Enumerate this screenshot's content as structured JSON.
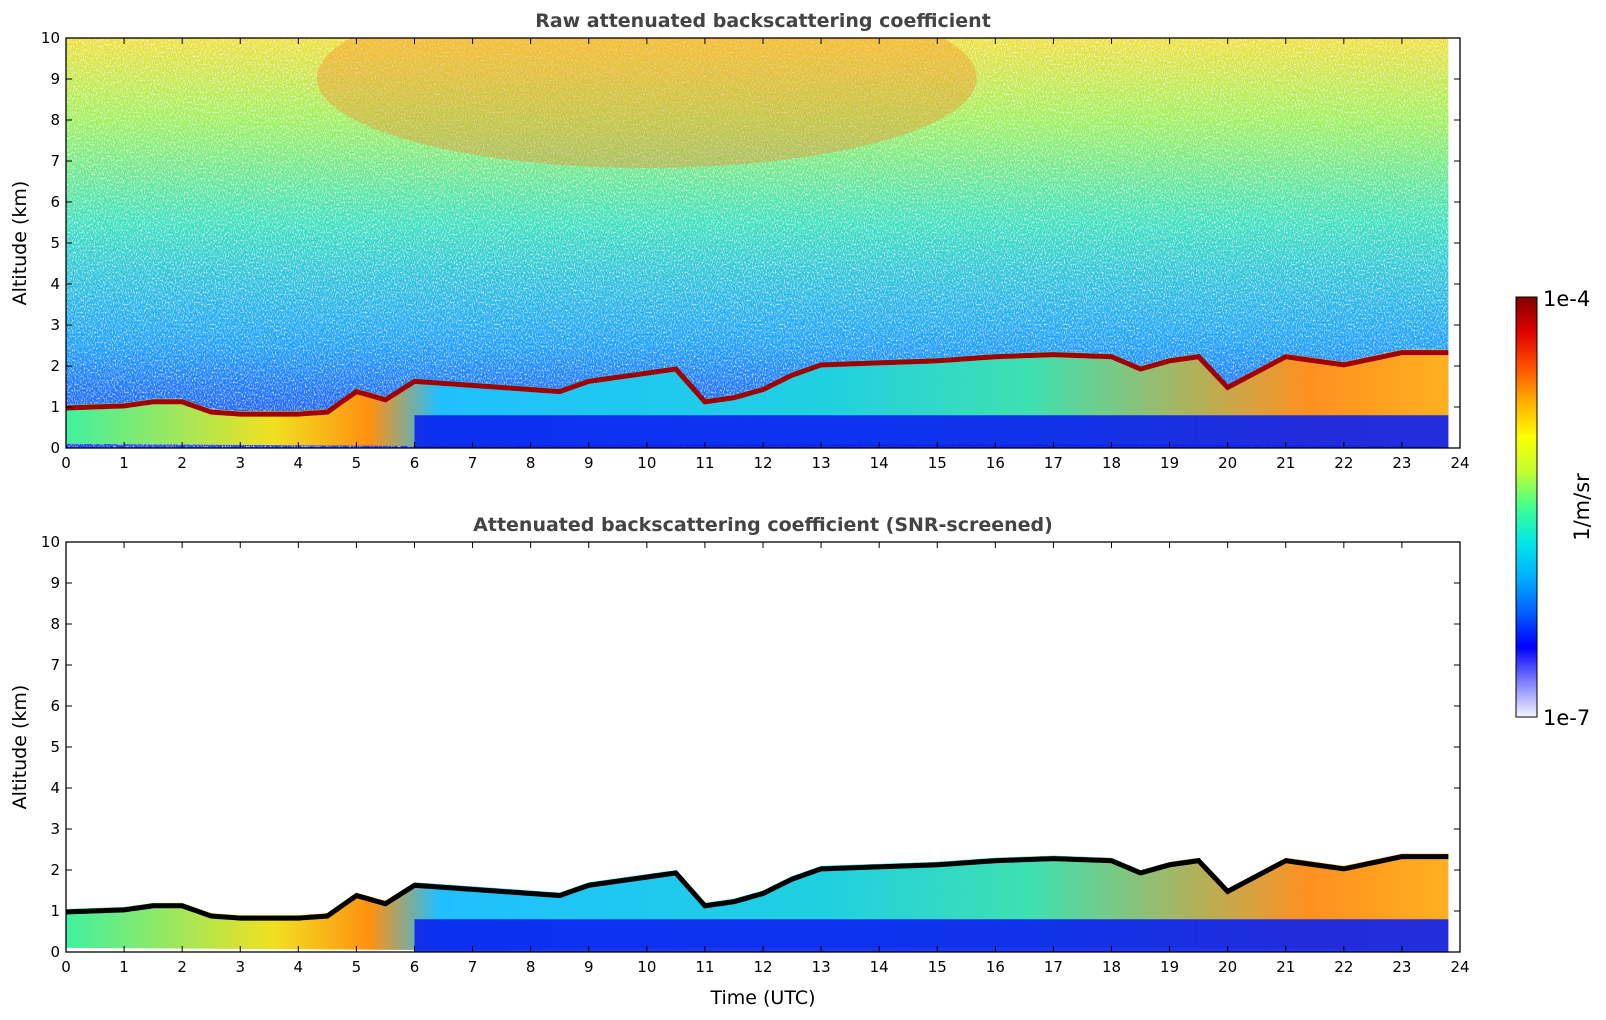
{
  "chart_data": [
    {
      "type": "heatmap",
      "title": "Raw attenuated backscattering coefficient",
      "xlabel": "",
      "ylabel": "Altitude (km)",
      "xlim": [
        0,
        24
      ],
      "ylim": [
        0,
        10
      ],
      "xticks": [
        "0",
        "1",
        "2",
        "3",
        "4",
        "5",
        "6",
        "7",
        "8",
        "9",
        "10",
        "11",
        "12",
        "13",
        "14",
        "15",
        "16",
        "17",
        "18",
        "19",
        "20",
        "21",
        "22",
        "23",
        "24"
      ],
      "yticks": [
        "0",
        "1",
        "2",
        "3",
        "4",
        "5",
        "6",
        "7",
        "8",
        "9",
        "10"
      ],
      "data_end_time": 23.8,
      "screened": false,
      "boundary_layer_top_km": [
        [
          0,
          1.05
        ],
        [
          1,
          1.1
        ],
        [
          1.5,
          1.2
        ],
        [
          2,
          1.2
        ],
        [
          2.5,
          0.95
        ],
        [
          3,
          0.9
        ],
        [
          4,
          0.9
        ],
        [
          4.5,
          0.95
        ],
        [
          5,
          1.45
        ],
        [
          5.5,
          1.25
        ],
        [
          6,
          1.7
        ],
        [
          6.5,
          1.65
        ],
        [
          7,
          1.6
        ],
        [
          8,
          1.5
        ],
        [
          8.5,
          1.45
        ],
        [
          9,
          1.7
        ],
        [
          10,
          1.9
        ],
        [
          10.5,
          2.0
        ],
        [
          11,
          1.2
        ],
        [
          11.5,
          1.3
        ],
        [
          12,
          1.5
        ],
        [
          12.5,
          1.85
        ],
        [
          13,
          2.1
        ],
        [
          14,
          2.15
        ],
        [
          15,
          2.2
        ],
        [
          16,
          2.3
        ],
        [
          17,
          2.35
        ],
        [
          18,
          2.3
        ],
        [
          18.5,
          2.0
        ],
        [
          19,
          2.2
        ],
        [
          19.5,
          2.3
        ],
        [
          20,
          1.55
        ],
        [
          21,
          2.3
        ],
        [
          22,
          2.1
        ],
        [
          23,
          2.4
        ],
        [
          23.8,
          2.4
        ]
      ],
      "boundary_layer_base_km": [
        [
          0,
          0.1
        ],
        [
          6,
          0.05
        ],
        [
          12,
          0.1
        ],
        [
          18,
          0.1
        ],
        [
          23.8,
          0.05
        ]
      ]
    },
    {
      "type": "heatmap",
      "title": "Attenuated backscattering coefficient (SNR-screened)",
      "xlabel": "Time (UTC)",
      "ylabel": "Altitude (km)",
      "xlim": [
        0,
        24
      ],
      "ylim": [
        0,
        10
      ],
      "xticks": [
        "0",
        "1",
        "2",
        "3",
        "4",
        "5",
        "6",
        "7",
        "8",
        "9",
        "10",
        "11",
        "12",
        "13",
        "14",
        "15",
        "16",
        "17",
        "18",
        "19",
        "20",
        "21",
        "22",
        "23",
        "24"
      ],
      "yticks": [
        "0",
        "1",
        "2",
        "3",
        "4",
        "5",
        "6",
        "7",
        "8",
        "9",
        "10"
      ],
      "data_end_time": 23.8,
      "screened": true,
      "boundary_layer_top_km": [
        [
          0,
          1.05
        ],
        [
          1,
          1.1
        ],
        [
          1.5,
          1.2
        ],
        [
          2,
          1.2
        ],
        [
          2.5,
          0.95
        ],
        [
          3,
          0.9
        ],
        [
          4,
          0.9
        ],
        [
          4.5,
          0.95
        ],
        [
          5,
          1.45
        ],
        [
          5.5,
          1.25
        ],
        [
          6,
          1.7
        ],
        [
          6.5,
          1.65
        ],
        [
          7,
          1.6
        ],
        [
          8,
          1.5
        ],
        [
          8.5,
          1.45
        ],
        [
          9,
          1.7
        ],
        [
          10,
          1.9
        ],
        [
          10.5,
          2.0
        ],
        [
          11,
          1.2
        ],
        [
          11.5,
          1.3
        ],
        [
          12,
          1.5
        ],
        [
          12.5,
          1.85
        ],
        [
          13,
          2.1
        ],
        [
          14,
          2.15
        ],
        [
          15,
          2.2
        ],
        [
          16,
          2.3
        ],
        [
          17,
          2.35
        ],
        [
          18,
          2.3
        ],
        [
          18.5,
          2.0
        ],
        [
          19,
          2.2
        ],
        [
          19.5,
          2.3
        ],
        [
          20,
          1.55
        ],
        [
          21,
          2.3
        ],
        [
          22,
          2.1
        ],
        [
          23,
          2.4
        ],
        [
          23.8,
          2.4
        ]
      ],
      "boundary_layer_base_km": [
        [
          0,
          0.1
        ],
        [
          6,
          0.05
        ],
        [
          12,
          0.1
        ],
        [
          18,
          0.1
        ],
        [
          23.8,
          0.05
        ]
      ]
    }
  ],
  "colorbar": {
    "label": "1/m/sr",
    "max_label": "1e-4",
    "min_label": "1e-7",
    "scale": "log",
    "range": [
      1e-07,
      0.0001
    ],
    "colormap": [
      "#f4f4ff",
      "#8080ff",
      "#0000ff",
      "#0060ff",
      "#00b0ff",
      "#00e8e8",
      "#40ff90",
      "#c0ff30",
      "#ffff00",
      "#ffb000",
      "#ff5000",
      "#e00000",
      "#800000"
    ]
  }
}
